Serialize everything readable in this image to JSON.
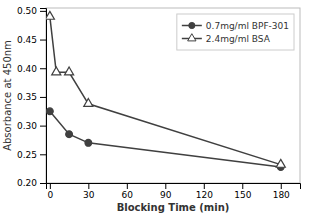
{
  "chart_data": {
    "type": "line",
    "xlabel": "Blocking Time (min)",
    "ylabel": "Absorbance at 450nm",
    "series": [
      {
        "name": "0.7mg/ml BPF-301",
        "color": "#404040",
        "marker": "circle",
        "x": [
          0,
          15,
          30,
          180
        ],
        "values": [
          0.325,
          0.285,
          0.27,
          0.228
        ]
      },
      {
        "name": "2.4mg/ml BSA",
        "color": "#404040",
        "marker": "triangle-open",
        "x": [
          0,
          5,
          15,
          30,
          180
        ],
        "values": [
          0.49,
          0.393,
          0.393,
          0.338,
          0.232
        ]
      }
    ],
    "xlim": [
      -3,
      195
    ],
    "ylim": [
      0.2,
      0.505
    ],
    "xticks": [
      0,
      30,
      60,
      90,
      120,
      150,
      180
    ],
    "yticks": [
      {
        "value": 0.2,
        "label": "0.20"
      },
      0.25,
      {
        "value": 0.3,
        "label": "0.30"
      },
      0.35,
      {
        "value": 0.4,
        "label": "0.40"
      },
      0.45,
      {
        "value": 0.5,
        "label": "0.50"
      }
    ],
    "legend": "upper right",
    "grid": false
  }
}
